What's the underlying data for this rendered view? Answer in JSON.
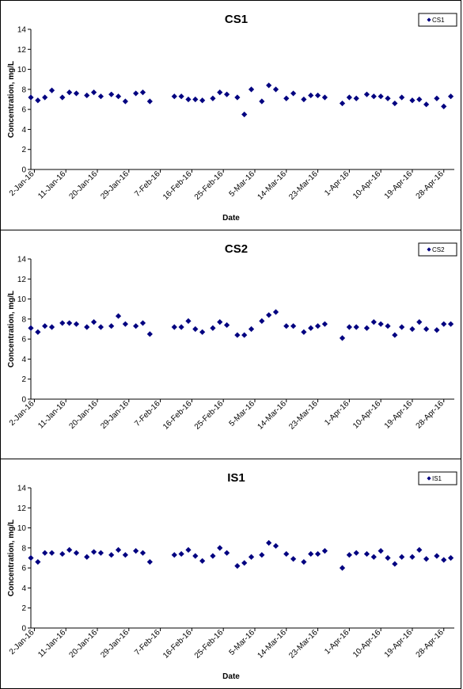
{
  "chart_data": [
    {
      "type": "scatter",
      "title": "CS1",
      "xlabel": "Date",
      "ylabel": "Concentration, mg/L",
      "ylim": [
        0,
        14
      ],
      "yticks": [
        "0",
        "2",
        "4",
        "6",
        "8",
        "10",
        "12",
        "14"
      ],
      "xlim": [
        "2016-01-01",
        "2016-05-01"
      ],
      "xticks": [
        "2-Jan-16",
        "11-Jan-16",
        "20-Jan-16",
        "29-Jan-16",
        "7-Feb-16",
        "16-Feb-16",
        "25-Feb-16",
        "5-Mar-16",
        "14-Mar-16",
        "23-Mar-16",
        "1-Apr-16",
        "10-Apr-16",
        "19-Apr-16",
        "28-Apr-16"
      ],
      "tick_dates": [
        "2016-01-02",
        "2016-01-11",
        "2016-01-20",
        "2016-01-29",
        "2016-02-07",
        "2016-02-16",
        "2016-02-25",
        "2016-03-05",
        "2016-03-14",
        "2016-03-23",
        "2016-04-01",
        "2016-04-10",
        "2016-04-19",
        "2016-04-28"
      ],
      "legend": "top-right",
      "grid": false,
      "series": [
        {
          "name": "CS1",
          "color": "#000080",
          "marker": "diamond",
          "points": [
            [
              "2016-01-01",
              7.2
            ],
            [
              "2016-01-03",
              6.9
            ],
            [
              "2016-01-05",
              7.2
            ],
            [
              "2016-01-07",
              7.9
            ],
            [
              "2016-01-10",
              7.2
            ],
            [
              "2016-01-12",
              7.7
            ],
            [
              "2016-01-14",
              7.6
            ],
            [
              "2016-01-17",
              7.4
            ],
            [
              "2016-01-19",
              7.7
            ],
            [
              "2016-01-21",
              7.3
            ],
            [
              "2016-01-24",
              7.5
            ],
            [
              "2016-01-26",
              7.3
            ],
            [
              "2016-01-28",
              6.8
            ],
            [
              "2016-01-31",
              7.6
            ],
            [
              "2016-02-02",
              7.7
            ],
            [
              "2016-02-04",
              6.8
            ],
            [
              "2016-02-11",
              7.3
            ],
            [
              "2016-02-13",
              7.3
            ],
            [
              "2016-02-15",
              7.0
            ],
            [
              "2016-02-17",
              7.0
            ],
            [
              "2016-02-19",
              6.9
            ],
            [
              "2016-02-22",
              7.1
            ],
            [
              "2016-02-24",
              7.7
            ],
            [
              "2016-02-26",
              7.5
            ],
            [
              "2016-02-29",
              7.2
            ],
            [
              "2016-03-02",
              5.5
            ],
            [
              "2016-03-04",
              8.0
            ],
            [
              "2016-03-07",
              6.8
            ],
            [
              "2016-03-09",
              8.4
            ],
            [
              "2016-03-11",
              8.0
            ],
            [
              "2016-03-14",
              7.1
            ],
            [
              "2016-03-16",
              7.6
            ],
            [
              "2016-03-19",
              7.0
            ],
            [
              "2016-03-21",
              7.4
            ],
            [
              "2016-03-23",
              7.4
            ],
            [
              "2016-03-25",
              7.2
            ],
            [
              "2016-03-30",
              6.6
            ],
            [
              "2016-04-01",
              7.2
            ],
            [
              "2016-04-03",
              7.1
            ],
            [
              "2016-04-06",
              7.5
            ],
            [
              "2016-04-08",
              7.3
            ],
            [
              "2016-04-10",
              7.3
            ],
            [
              "2016-04-12",
              7.1
            ],
            [
              "2016-04-14",
              6.6
            ],
            [
              "2016-04-16",
              7.2
            ],
            [
              "2016-04-19",
              6.9
            ],
            [
              "2016-04-21",
              7.0
            ],
            [
              "2016-04-23",
              6.5
            ],
            [
              "2016-04-26",
              7.1
            ],
            [
              "2016-04-28",
              6.3
            ],
            [
              "2016-04-30",
              7.3
            ]
          ]
        }
      ]
    },
    {
      "type": "scatter",
      "title": "CS2",
      "xlabel": "",
      "ylabel": "Concentration, mg/L",
      "ylim": [
        0,
        14
      ],
      "yticks": [
        "0",
        "2",
        "4",
        "6",
        "8",
        "10",
        "12",
        "14"
      ],
      "xlim": [
        "2016-01-01",
        "2016-05-01"
      ],
      "xticks": [
        "2-Jan-16",
        "11-Jan-16",
        "20-Jan-16",
        "29-Jan-16",
        "7-Feb-16",
        "16-Feb-16",
        "25-Feb-16",
        "5-Mar-16",
        "14-Mar-16",
        "23-Mar-16",
        "1-Apr-16",
        "10-Apr-16",
        "19-Apr-16",
        "28-Apr-16"
      ],
      "tick_dates": [
        "2016-01-02",
        "2016-01-11",
        "2016-01-20",
        "2016-01-29",
        "2016-02-07",
        "2016-02-16",
        "2016-02-25",
        "2016-03-05",
        "2016-03-14",
        "2016-03-23",
        "2016-04-01",
        "2016-04-10",
        "2016-04-19",
        "2016-04-28"
      ],
      "legend": "top-right",
      "grid": false,
      "series": [
        {
          "name": "CS2",
          "color": "#000080",
          "marker": "diamond",
          "points": [
            [
              "2016-01-01",
              7.1
            ],
            [
              "2016-01-03",
              6.7
            ],
            [
              "2016-01-05",
              7.3
            ],
            [
              "2016-01-07",
              7.2
            ],
            [
              "2016-01-10",
              7.6
            ],
            [
              "2016-01-12",
              7.6
            ],
            [
              "2016-01-14",
              7.5
            ],
            [
              "2016-01-17",
              7.2
            ],
            [
              "2016-01-19",
              7.7
            ],
            [
              "2016-01-21",
              7.2
            ],
            [
              "2016-01-24",
              7.3
            ],
            [
              "2016-01-26",
              8.3
            ],
            [
              "2016-01-28",
              7.5
            ],
            [
              "2016-01-31",
              7.3
            ],
            [
              "2016-02-02",
              7.6
            ],
            [
              "2016-02-04",
              6.5
            ],
            [
              "2016-02-11",
              7.2
            ],
            [
              "2016-02-13",
              7.2
            ],
            [
              "2016-02-15",
              7.8
            ],
            [
              "2016-02-17",
              7.0
            ],
            [
              "2016-02-19",
              6.7
            ],
            [
              "2016-02-22",
              7.1
            ],
            [
              "2016-02-24",
              7.7
            ],
            [
              "2016-02-26",
              7.4
            ],
            [
              "2016-02-29",
              6.4
            ],
            [
              "2016-03-02",
              6.4
            ],
            [
              "2016-03-04",
              7.0
            ],
            [
              "2016-03-07",
              7.8
            ],
            [
              "2016-03-09",
              8.4
            ],
            [
              "2016-03-11",
              8.7
            ],
            [
              "2016-03-14",
              7.3
            ],
            [
              "2016-03-16",
              7.3
            ],
            [
              "2016-03-19",
              6.7
            ],
            [
              "2016-03-21",
              7.1
            ],
            [
              "2016-03-23",
              7.3
            ],
            [
              "2016-03-25",
              7.5
            ],
            [
              "2016-03-30",
              6.1
            ],
            [
              "2016-04-01",
              7.2
            ],
            [
              "2016-04-03",
              7.2
            ],
            [
              "2016-04-06",
              7.1
            ],
            [
              "2016-04-08",
              7.7
            ],
            [
              "2016-04-10",
              7.5
            ],
            [
              "2016-04-12",
              7.3
            ],
            [
              "2016-04-14",
              6.4
            ],
            [
              "2016-04-16",
              7.2
            ],
            [
              "2016-04-19",
              7.0
            ],
            [
              "2016-04-21",
              7.7
            ],
            [
              "2016-04-23",
              7.0
            ],
            [
              "2016-04-26",
              6.9
            ],
            [
              "2016-04-28",
              7.5
            ],
            [
              "2016-04-30",
              7.5
            ]
          ]
        }
      ]
    },
    {
      "type": "scatter",
      "title": "IS1",
      "xlabel": "Date",
      "ylabel": "Concentration, mg/L",
      "ylim": [
        0,
        14
      ],
      "yticks": [
        "0",
        "2",
        "4",
        "6",
        "8",
        "10",
        "12",
        "14"
      ],
      "xlim": [
        "2016-01-01",
        "2016-05-01"
      ],
      "xticks": [
        "2-Jan-16",
        "11-Jan-16",
        "20-Jan-16",
        "29-Jan-16",
        "7-Feb-16",
        "16-Feb-16",
        "25-Feb-16",
        "5-Mar-16",
        "14-Mar-16",
        "23-Mar-16",
        "1-Apr-16",
        "10-Apr-16",
        "19-Apr-16",
        "28-Apr-16"
      ],
      "tick_dates": [
        "2016-01-02",
        "2016-01-11",
        "2016-01-20",
        "2016-01-29",
        "2016-02-07",
        "2016-02-16",
        "2016-02-25",
        "2016-03-05",
        "2016-03-14",
        "2016-03-23",
        "2016-04-01",
        "2016-04-10",
        "2016-04-19",
        "2016-04-28"
      ],
      "legend": "top-right",
      "grid": false,
      "series": [
        {
          "name": "IS1",
          "color": "#000080",
          "marker": "diamond",
          "points": [
            [
              "2016-01-01",
              7.0
            ],
            [
              "2016-01-03",
              6.6
            ],
            [
              "2016-01-05",
              7.5
            ],
            [
              "2016-01-07",
              7.5
            ],
            [
              "2016-01-10",
              7.4
            ],
            [
              "2016-01-12",
              7.8
            ],
            [
              "2016-01-14",
              7.5
            ],
            [
              "2016-01-17",
              7.1
            ],
            [
              "2016-01-19",
              7.6
            ],
            [
              "2016-01-21",
              7.5
            ],
            [
              "2016-01-24",
              7.3
            ],
            [
              "2016-01-26",
              7.8
            ],
            [
              "2016-01-28",
              7.3
            ],
            [
              "2016-01-31",
              7.7
            ],
            [
              "2016-02-02",
              7.5
            ],
            [
              "2016-02-04",
              6.6
            ],
            [
              "2016-02-11",
              7.3
            ],
            [
              "2016-02-13",
              7.4
            ],
            [
              "2016-02-15",
              7.8
            ],
            [
              "2016-02-17",
              7.2
            ],
            [
              "2016-02-19",
              6.7
            ],
            [
              "2016-02-22",
              7.2
            ],
            [
              "2016-02-24",
              8.0
            ],
            [
              "2016-02-26",
              7.5
            ],
            [
              "2016-02-29",
              6.2
            ],
            [
              "2016-03-02",
              6.5
            ],
            [
              "2016-03-04",
              7.1
            ],
            [
              "2016-03-07",
              7.3
            ],
            [
              "2016-03-09",
              8.5
            ],
            [
              "2016-03-11",
              8.2
            ],
            [
              "2016-03-14",
              7.4
            ],
            [
              "2016-03-16",
              6.9
            ],
            [
              "2016-03-19",
              6.6
            ],
            [
              "2016-03-21",
              7.4
            ],
            [
              "2016-03-23",
              7.4
            ],
            [
              "2016-03-25",
              7.7
            ],
            [
              "2016-03-30",
              6.0
            ],
            [
              "2016-04-01",
              7.3
            ],
            [
              "2016-04-03",
              7.5
            ],
            [
              "2016-04-06",
              7.4
            ],
            [
              "2016-04-08",
              7.1
            ],
            [
              "2016-04-10",
              7.7
            ],
            [
              "2016-04-12",
              7.0
            ],
            [
              "2016-04-14",
              6.4
            ],
            [
              "2016-04-16",
              7.1
            ],
            [
              "2016-04-19",
              7.1
            ],
            [
              "2016-04-21",
              7.8
            ],
            [
              "2016-04-23",
              6.9
            ],
            [
              "2016-04-26",
              7.2
            ],
            [
              "2016-04-28",
              6.8
            ],
            [
              "2016-04-30",
              7.0
            ]
          ]
        }
      ]
    }
  ]
}
